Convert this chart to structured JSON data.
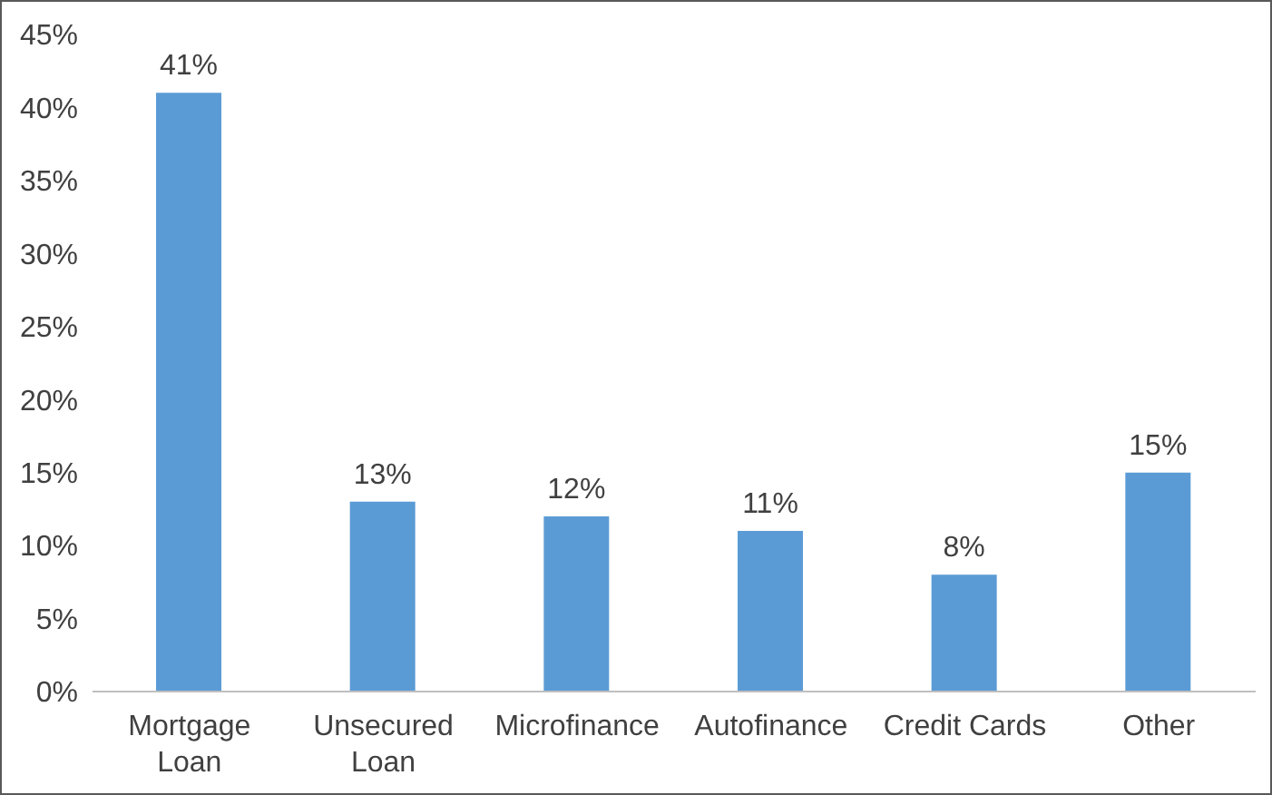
{
  "chart_data": {
    "type": "bar",
    "categories": [
      "Mortgage Loan",
      "Unsecured Loan",
      "Microfinance",
      "Autofinance",
      "Credit Cards",
      "Other"
    ],
    "values": [
      41,
      13,
      12,
      11,
      8,
      15
    ],
    "color": "#5b9bd5",
    "value_labels": [
      "41%",
      "13%",
      "12%",
      "11%",
      "8%",
      "15%"
    ],
    "ylim": [
      0,
      45
    ],
    "yticks": [
      {
        "value": 0,
        "label": "0%"
      },
      {
        "value": 5,
        "label": "5%"
      },
      {
        "value": 10,
        "label": "10%"
      },
      {
        "value": 15,
        "label": "15%"
      },
      {
        "value": 20,
        "label": "20%"
      },
      {
        "value": 25,
        "label": "25%"
      },
      {
        "value": 30,
        "label": "30%"
      },
      {
        "value": 35,
        "label": "35%"
      },
      {
        "value": 40,
        "label": "40%"
      },
      {
        "value": 45,
        "label": "45%"
      }
    ],
    "grid": false
  }
}
